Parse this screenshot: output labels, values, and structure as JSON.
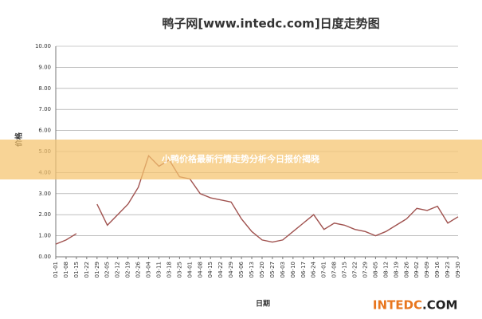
{
  "chart_data": {
    "type": "line",
    "title": "鸭子网[www.intedc.com]日度走势图",
    "y_label": "价格",
    "x_label": "日期",
    "banner": "小鸭价格最新行情走势分析今日报价揭晓",
    "watermark": [
      "INTEDC",
      ".COM"
    ],
    "categories": [
      "01-01",
      "01-08",
      "01-15",
      "01-22",
      "01-29",
      "02-05",
      "02-12",
      "02-19",
      "02-26",
      "03-04",
      "03-11",
      "03-18",
      "03-25",
      "04-01",
      "04-08",
      "04-15",
      "04-22",
      "04-29",
      "05-06",
      "05-13",
      "05-20",
      "05-27",
      "06-03",
      "06-10",
      "06-17",
      "06-24",
      "07-01",
      "07-08",
      "07-15",
      "07-22",
      "07-29",
      "08-05",
      "08-12",
      "08-19",
      "08-26",
      "09-02",
      "09-09",
      "09-16",
      "09-23",
      "09-30"
    ],
    "series": [
      {
        "name": "价格",
        "color": "#a0524f",
        "values": [
          0.6,
          0.8,
          1.1,
          null,
          2.5,
          1.5,
          2.0,
          2.5,
          3.3,
          4.8,
          4.3,
          4.6,
          3.8,
          3.7,
          3.0,
          2.8,
          2.7,
          2.6,
          1.8,
          1.2,
          0.8,
          0.7,
          0.8,
          1.2,
          1.6,
          2.0,
          1.3,
          1.6,
          1.5,
          1.3,
          1.2,
          1.0,
          1.2,
          1.5,
          1.8,
          2.3,
          2.2,
          2.4,
          1.6,
          1.9
        ]
      }
    ],
    "ylim": [
      0,
      10
    ],
    "yticks": [
      {
        "value": 0,
        "label": "0.00"
      },
      {
        "value": 1,
        "label": "1.00"
      },
      {
        "value": 2,
        "label": "2.00"
      },
      {
        "value": 3,
        "label": "3.00"
      },
      {
        "value": 4,
        "label": "4.00"
      },
      {
        "value": 5,
        "label": "5.00"
      },
      {
        "value": 6,
        "label": "6.00"
      },
      {
        "value": 7,
        "label": "7.00"
      },
      {
        "value": 8,
        "label": "8.00"
      },
      {
        "value": 9,
        "label": "9.00"
      },
      {
        "value": 10,
        "label": "10.00"
      }
    ],
    "grid": true
  }
}
